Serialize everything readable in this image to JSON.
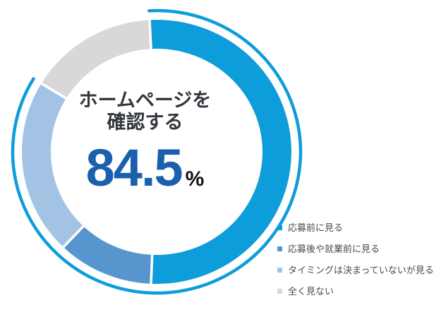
{
  "page": {
    "background": "#ffffff"
  },
  "chart_data": {
    "type": "pie",
    "subtype": "donut",
    "title": "ホームページを確認する 84.5%",
    "center": {
      "line1": "ホームページを",
      "line2": "確認する",
      "value": "84.5",
      "unit": "%"
    },
    "highlight": {
      "label": "ホームページを確認する",
      "value": 84.5,
      "unit": "%",
      "covers_segments": [
        0,
        1,
        2
      ]
    },
    "segments": [
      {
        "label": "応募前に見る",
        "value": 51.5,
        "color": "#0D9DDB"
      },
      {
        "label": "応募後や就業前に見る",
        "value": 11.5,
        "color": "#5795CE"
      },
      {
        "label": "タイミングは決まっていないが見る",
        "value": 21.5,
        "color": "#A2C3E4"
      },
      {
        "label": "全く見ない",
        "value": 15.5,
        "color": "#D8D8D8"
      }
    ],
    "layout": {
      "start_angle_deg": -3,
      "legend_position": "bottom-right",
      "grid": false,
      "outer_ring_accent_arc": {
        "color": "#0D9DDB",
        "covers_percent": 84.5
      }
    },
    "colors": {
      "value_text": "#1A60AC",
      "title_text": "#33383E",
      "unit_text": "#111111",
      "legend_text": "#4A4A4A",
      "segment_gap": "#FFFFFF"
    }
  }
}
